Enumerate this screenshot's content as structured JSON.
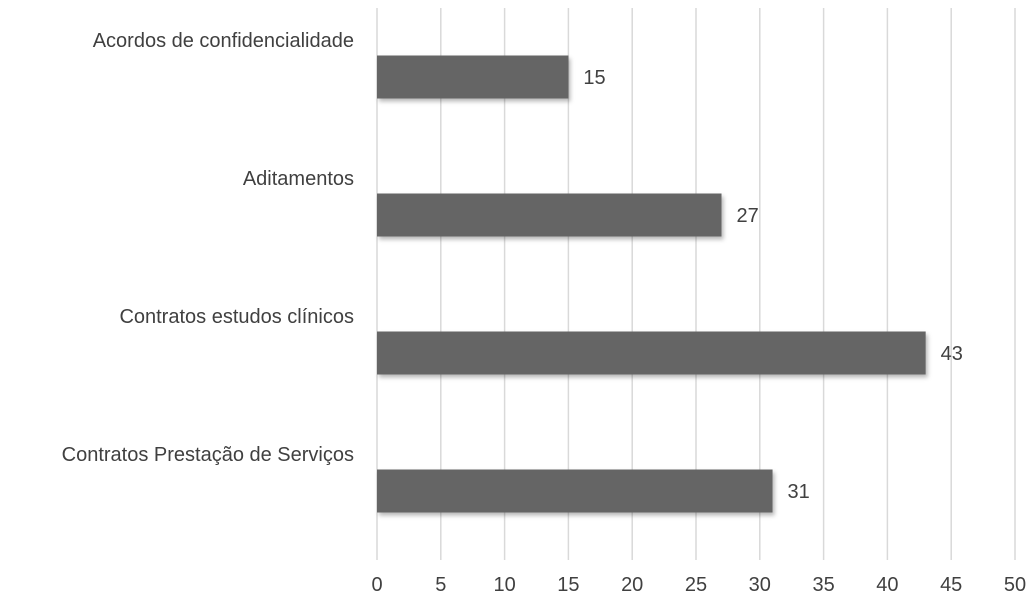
{
  "chart_data": {
    "type": "bar",
    "orientation": "horizontal",
    "categories": [
      "Acordos de confidencialidade",
      "Aditamentos",
      "Contratos estudos clínicos",
      "Contratos Prestação de Serviços"
    ],
    "values": [
      15,
      27,
      43,
      31
    ],
    "title": "",
    "xlabel": "",
    "ylabel": "",
    "xlim": [
      0,
      50
    ],
    "xticks": [
      "0",
      "5",
      "10",
      "15",
      "20",
      "25",
      "30",
      "35",
      "40",
      "45",
      "50"
    ],
    "grid": true,
    "legend": "none",
    "bar_color": "#656565",
    "data_labels": true
  }
}
